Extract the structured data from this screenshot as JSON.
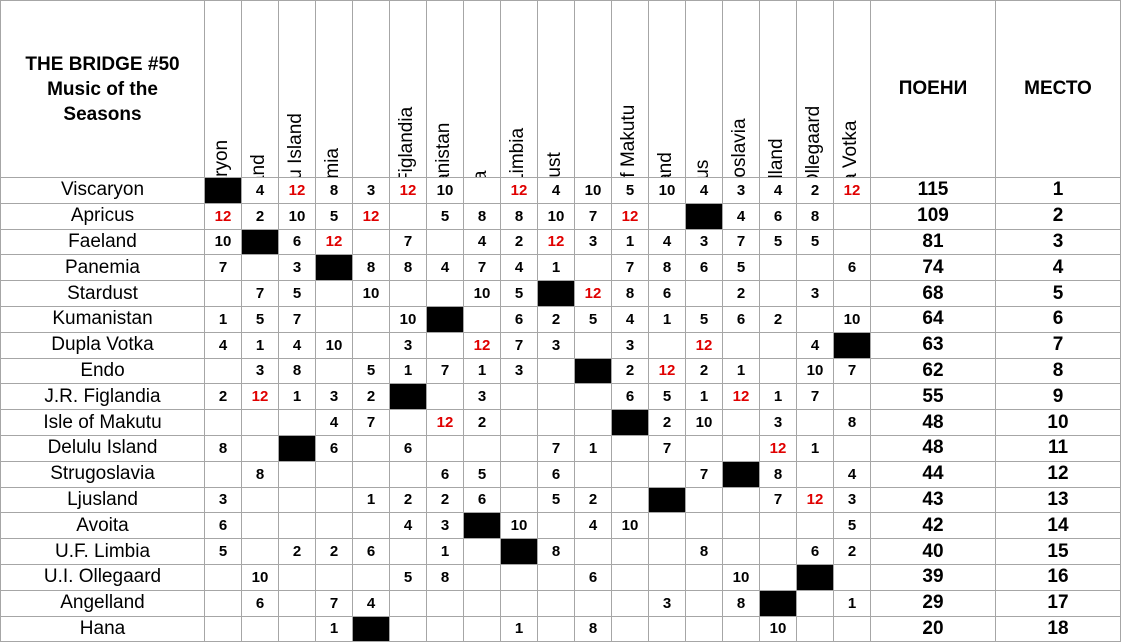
{
  "title_lines": [
    "THE BRIDGE #50",
    "Music of the",
    "Seasons"
  ],
  "voters": [
    "Viscaryon",
    "Faeland",
    "Delulu Island",
    "Panemia",
    "Hana",
    "J.R. Figlandia",
    "Kumanistan",
    "Avoita",
    "U.F. Limbia",
    "Stardust",
    "Endo",
    "Isle of Makutu",
    "Ljusland",
    "Apricus",
    "Strugoslavia",
    "Angelland",
    "U.I. Ollegaard",
    "Dupla Votka"
  ],
  "points_header": "ПОЕНИ",
  "place_header": "МЕСТО",
  "colors": {
    "twelve": "#e00000",
    "self_vote": "#000000",
    "grid": "#a6a6a6"
  },
  "rows": [
    {
      "country": "Viscaryon",
      "scores": [
        "X",
        "4",
        "12",
        "8",
        "3",
        "12",
        "10",
        "",
        "12",
        "4",
        "10",
        "5",
        "10",
        "4",
        "3",
        "4",
        "2",
        "12"
      ],
      "points": "115",
      "place": "1"
    },
    {
      "country": "Apricus",
      "scores": [
        "12",
        "2",
        "10",
        "5",
        "12",
        "",
        "5",
        "8",
        "8",
        "10",
        "7",
        "12",
        "",
        "X",
        "4",
        "6",
        "8",
        ""
      ],
      "points": "109",
      "place": "2"
    },
    {
      "country": "Faeland",
      "scores": [
        "10",
        "X",
        "6",
        "12",
        "",
        "7",
        "",
        "4",
        "2",
        "12",
        "3",
        "1",
        "4",
        "3",
        "7",
        "5",
        "5",
        ""
      ],
      "points": "81",
      "place": "3"
    },
    {
      "country": "Panemia",
      "scores": [
        "7",
        "",
        "3",
        "X",
        "8",
        "8",
        "4",
        "7",
        "4",
        "1",
        "",
        "7",
        "8",
        "6",
        "5",
        "",
        "",
        "6"
      ],
      "points": "74",
      "place": "4"
    },
    {
      "country": "Stardust",
      "scores": [
        "",
        "7",
        "5",
        "",
        "10",
        "",
        "",
        "10",
        "5",
        "X",
        "12",
        "8",
        "6",
        "",
        "2",
        "",
        "3",
        ""
      ],
      "points": "68",
      "place": "5"
    },
    {
      "country": "Kumanistan",
      "scores": [
        "1",
        "5",
        "7",
        "",
        "",
        "10",
        "X",
        "",
        "6",
        "2",
        "5",
        "4",
        "1",
        "5",
        "6",
        "2",
        "",
        "10"
      ],
      "points": "64",
      "place": "6"
    },
    {
      "country": "Dupla Votka",
      "scores": [
        "4",
        "1",
        "4",
        "10",
        "",
        "3",
        "",
        "12",
        "7",
        "3",
        "",
        "3",
        "",
        "12",
        "",
        "",
        "4",
        "X"
      ],
      "points": "63",
      "place": "7"
    },
    {
      "country": "Endo",
      "scores": [
        "",
        "3",
        "8",
        "",
        "5",
        "1",
        "7",
        "1",
        "3",
        "",
        "X",
        "2",
        "12",
        "2",
        "1",
        "",
        "10",
        "7"
      ],
      "points": "62",
      "place": "8"
    },
    {
      "country": "J.R. Figlandia",
      "scores": [
        "2",
        "12",
        "1",
        "3",
        "2",
        "X",
        "",
        "3",
        "",
        "",
        "",
        "6",
        "5",
        "1",
        "12",
        "1",
        "7",
        ""
      ],
      "points": "55",
      "place": "9"
    },
    {
      "country": "Isle of Makutu",
      "scores": [
        "",
        "",
        "",
        "4",
        "7",
        "",
        "12",
        "2",
        "",
        "",
        "",
        "X",
        "2",
        "10",
        "",
        "3",
        "",
        "8"
      ],
      "points": "48",
      "place": "10"
    },
    {
      "country": "Delulu Island",
      "scores": [
        "8",
        "",
        "X",
        "6",
        "",
        "6",
        "",
        "",
        "",
        "7",
        "1",
        "",
        "7",
        "",
        "",
        "12",
        "1",
        ""
      ],
      "points": "48",
      "place": "11"
    },
    {
      "country": "Strugoslavia",
      "scores": [
        "",
        "8",
        "",
        "",
        "",
        "",
        "6",
        "5",
        "",
        "6",
        "",
        "",
        "",
        "7",
        "X",
        "8",
        "",
        "4"
      ],
      "points": "44",
      "place": "12"
    },
    {
      "country": "Ljusland",
      "scores": [
        "3",
        "",
        "",
        "",
        "1",
        "2",
        "2",
        "6",
        "",
        "5",
        "2",
        "",
        "X",
        "",
        "",
        "7",
        "12",
        "3"
      ],
      "points": "43",
      "place": "13"
    },
    {
      "country": "Avoita",
      "scores": [
        "6",
        "",
        "",
        "",
        "",
        "4",
        "3",
        "X",
        "10",
        "",
        "4",
        "10",
        "",
        "",
        "",
        "",
        "",
        "5"
      ],
      "points": "42",
      "place": "14"
    },
    {
      "country": "U.F. Limbia",
      "scores": [
        "5",
        "",
        "2",
        "2",
        "6",
        "",
        "1",
        "",
        "X",
        "8",
        "",
        "",
        "",
        "8",
        "",
        "",
        "6",
        "2"
      ],
      "points": "40",
      "place": "15"
    },
    {
      "country": "U.I. Ollegaard",
      "scores": [
        "",
        "10",
        "",
        "",
        "",
        "5",
        "8",
        "",
        "",
        "",
        "6",
        "",
        "",
        "",
        "10",
        "",
        "X",
        ""
      ],
      "points": "39",
      "place": "16"
    },
    {
      "country": "Angelland",
      "scores": [
        "",
        "6",
        "",
        "7",
        "4",
        "",
        "",
        "",
        "",
        "",
        "",
        "",
        "3",
        "",
        "8",
        "X",
        "",
        "1"
      ],
      "points": "29",
      "place": "17"
    },
    {
      "country": "Hana",
      "scores": [
        "",
        "",
        "",
        "1",
        "X",
        "",
        "",
        "",
        "1",
        "",
        "8",
        "",
        "",
        "",
        "",
        "10",
        "",
        ""
      ],
      "points": "20",
      "place": "18"
    }
  ]
}
